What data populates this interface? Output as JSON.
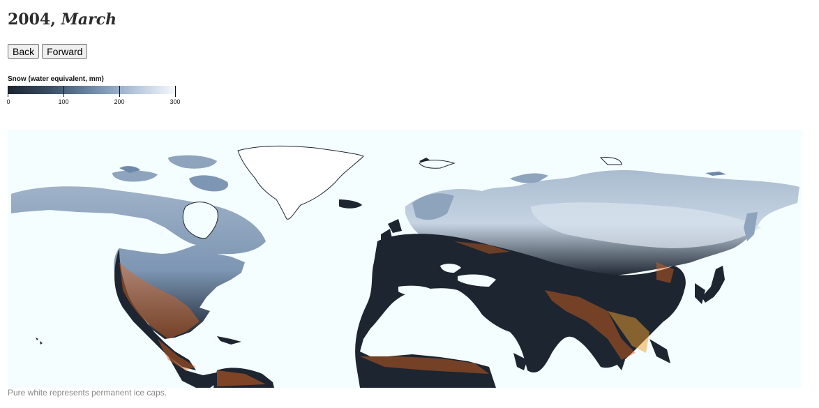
{
  "header": {
    "year": "2004,",
    "month": "March"
  },
  "nav": {
    "back_label": "Back",
    "forward_label": "Forward"
  },
  "legend": {
    "title": "Snow (water equivalent, mm)",
    "ticks": [
      "0",
      "100",
      "200",
      "300"
    ],
    "color_low": "#1b2430",
    "color_high": "#f5f8fd"
  },
  "map": {
    "ocean_color": "#f4fdff",
    "land_color": "#1d2530",
    "fire_color": "#e0631a"
  },
  "caption": "Pure white represents permanent ice caps."
}
